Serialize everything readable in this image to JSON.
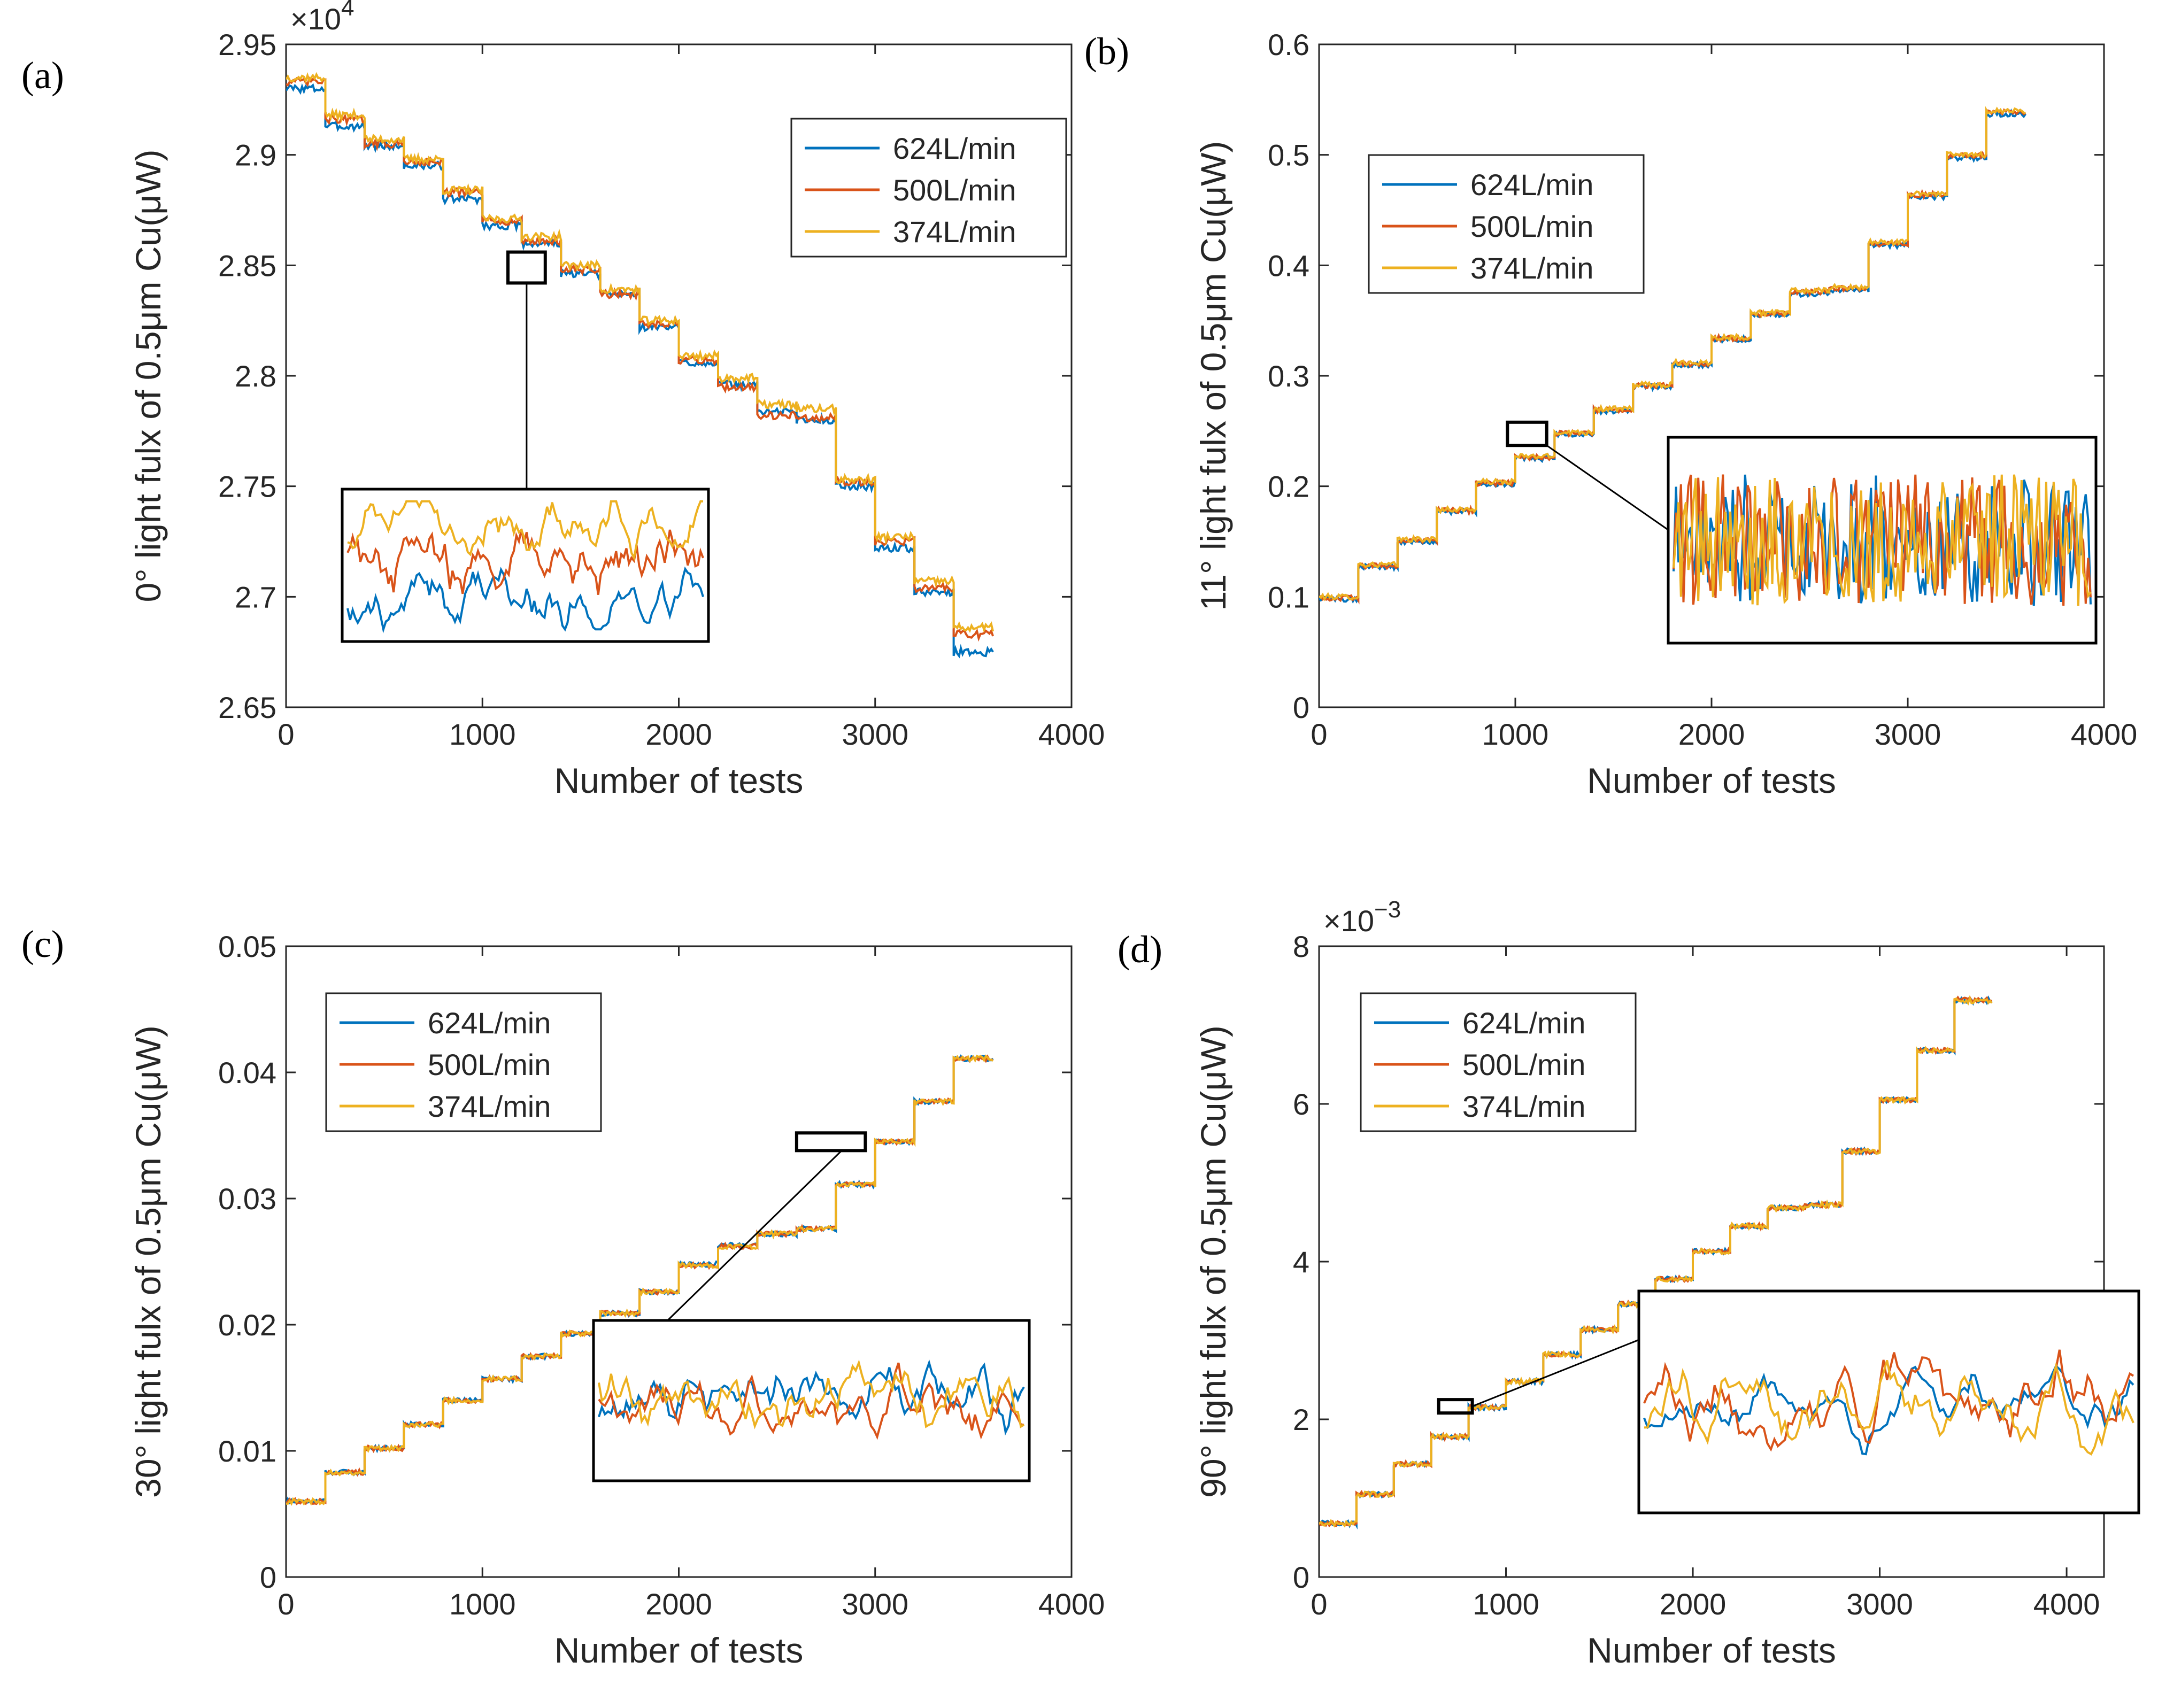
{
  "colors": {
    "blue": "#0072BD",
    "red": "#D95319",
    "yellow": "#EDB120"
  },
  "chart_data": [
    {
      "type": "line",
      "panel": "(a)",
      "xlabel": "Number of tests",
      "ylabel": "0° light fulx of 0.5μm Cu(μW)",
      "exponent": {
        "base": "×10",
        "power": "4"
      },
      "xlim": [
        0,
        4000
      ],
      "ylim": [
        2.65,
        2.95
      ],
      "xticks": [
        0,
        1000,
        2000,
        3000,
        4000
      ],
      "xtick_labels": [
        "0",
        "1000",
        "2000",
        "3000",
        "4000"
      ],
      "yticks": [
        2.65,
        2.7,
        2.75,
        2.8,
        2.85,
        2.9,
        2.95
      ],
      "ytick_labels": [
        "2.65",
        "2.7",
        "2.75",
        "2.8",
        "2.85",
        "2.9",
        "2.95"
      ],
      "legend_position": "top-right",
      "inset": {
        "x_range": [
          1130,
          1320
        ],
        "y_range": [
          2.842,
          2.856
        ],
        "noise": "smooth"
      },
      "x_end": 3600,
      "series": [
        {
          "name": "624L/min",
          "color": "#0072BD",
          "steps": [
            2.93,
            2.913,
            2.904,
            2.895,
            2.88,
            2.868,
            2.86,
            2.846,
            2.837,
            2.822,
            2.806,
            2.796,
            2.784,
            2.78,
            2.75,
            2.722,
            2.702,
            2.675
          ]
        },
        {
          "name": "500L/min",
          "color": "#D95319",
          "steps": [
            2.933,
            2.916,
            2.905,
            2.897,
            2.883,
            2.87,
            2.861,
            2.848,
            2.837,
            2.823,
            2.807,
            2.795,
            2.782,
            2.781,
            2.752,
            2.725,
            2.704,
            2.683
          ]
        },
        {
          "name": "374L/min",
          "color": "#EDB120",
          "steps": [
            2.935,
            2.918,
            2.907,
            2.898,
            2.884,
            2.871,
            2.863,
            2.85,
            2.839,
            2.825,
            2.809,
            2.799,
            2.787,
            2.785,
            2.753,
            2.727,
            2.707,
            2.686
          ]
        }
      ]
    },
    {
      "type": "line",
      "panel": "(b)",
      "xlabel": "Number of tests",
      "ylabel": "11° light fulx of 0.5μm Cu(μW)",
      "xlim": [
        0,
        4000
      ],
      "ylim": [
        0,
        0.6
      ],
      "xticks": [
        0,
        1000,
        2000,
        3000,
        4000
      ],
      "xtick_labels": [
        "0",
        "1000",
        "2000",
        "3000",
        "4000"
      ],
      "yticks": [
        0,
        0.1,
        0.2,
        0.3,
        0.4,
        0.5,
        0.6
      ],
      "ytick_labels": [
        "0",
        "0.1",
        "0.2",
        "0.3",
        "0.4",
        "0.5",
        "0.6"
      ],
      "legend_position": "top-left",
      "inset": {
        "x_range": [
          960,
          1160
        ],
        "y_range": [
          0.237,
          0.258
        ],
        "noise": "spiky"
      },
      "x_end": 3600,
      "series": [
        {
          "name": "624L/min",
          "color": "#0072BD",
          "steps": [
            0.098,
            0.127,
            0.15,
            0.177,
            0.202,
            0.225,
            0.247,
            0.268,
            0.29,
            0.31,
            0.333,
            0.355,
            0.374,
            0.378,
            0.418,
            0.462,
            0.497,
            0.537
          ]
        },
        {
          "name": "500L/min",
          "color": "#D95319",
          "steps": [
            0.099,
            0.128,
            0.151,
            0.178,
            0.203,
            0.226,
            0.248,
            0.269,
            0.291,
            0.311,
            0.334,
            0.356,
            0.376,
            0.379,
            0.419,
            0.464,
            0.499,
            0.539
          ]
        },
        {
          "name": "374L/min",
          "color": "#EDB120",
          "steps": [
            0.1,
            0.129,
            0.152,
            0.179,
            0.204,
            0.227,
            0.249,
            0.27,
            0.292,
            0.312,
            0.335,
            0.357,
            0.377,
            0.38,
            0.421,
            0.465,
            0.5,
            0.54
          ]
        }
      ]
    },
    {
      "type": "line",
      "panel": "(c)",
      "xlabel": "Number of tests",
      "ylabel": "30° light fulx of 0.5μm Cu(μW)",
      "xlim": [
        0,
        4000
      ],
      "ylim": [
        0,
        0.05
      ],
      "xticks": [
        0,
        1000,
        2000,
        3000,
        4000
      ],
      "xtick_labels": [
        "0",
        "1000",
        "2000",
        "3000",
        "4000"
      ],
      "yticks": [
        0,
        0.01,
        0.02,
        0.03,
        0.04,
        0.05
      ],
      "ytick_labels": [
        "0",
        "0.01",
        "0.02",
        "0.03",
        "0.04",
        "0.05"
      ],
      "legend_position": "top-left",
      "inset": {
        "x_range": [
          2600,
          2950
        ],
        "y_range": [
          0.0338,
          0.0352
        ],
        "noise": "smooth"
      },
      "x_end": 3600,
      "series": [
        {
          "name": "624L/min",
          "color": "#0072BD",
          "steps": [
            0.006,
            0.0083,
            0.0102,
            0.0121,
            0.014,
            0.0157,
            0.0175,
            0.0193,
            0.0209,
            0.0226,
            0.0248,
            0.0263,
            0.0272,
            0.0276,
            0.0311,
            0.0345,
            0.0377,
            0.0411
          ]
        },
        {
          "name": "500L/min",
          "color": "#D95319",
          "steps": [
            0.006,
            0.0083,
            0.0102,
            0.0121,
            0.014,
            0.0157,
            0.0175,
            0.0193,
            0.0209,
            0.0226,
            0.0247,
            0.0262,
            0.0272,
            0.0276,
            0.0311,
            0.0345,
            0.0377,
            0.0411
          ]
        },
        {
          "name": "374L/min",
          "color": "#EDB120",
          "steps": [
            0.006,
            0.0083,
            0.0102,
            0.0121,
            0.014,
            0.0157,
            0.0175,
            0.0193,
            0.0209,
            0.0226,
            0.0247,
            0.0262,
            0.0272,
            0.0276,
            0.0311,
            0.0345,
            0.0377,
            0.0411
          ]
        }
      ]
    },
    {
      "type": "line",
      "panel": "(d)",
      "xlabel": "Number of tests",
      "ylabel": "90° light fulx of 0.5μm Cu(μW)",
      "exponent": {
        "base": "×10",
        "power": "−3"
      },
      "xlim": [
        0,
        4200
      ],
      "ylim": [
        0,
        8
      ],
      "xticks": [
        0,
        1000,
        2000,
        3000,
        4000
      ],
      "xtick_labels": [
        "0",
        "1000",
        "2000",
        "3000",
        "4000"
      ],
      "yticks": [
        0,
        2,
        4,
        6,
        8
      ],
      "ytick_labels": [
        "0",
        "2",
        "4",
        "6",
        "8"
      ],
      "legend_position": "top-left",
      "inset": {
        "x_range": [
          640,
          820
        ],
        "y_range": [
          2.08,
          2.25
        ],
        "noise": "smooth"
      },
      "x_end": 3600,
      "series": [
        {
          "name": "624L/min",
          "color": "#0072BD",
          "steps": [
            0.68,
            1.05,
            1.43,
            1.78,
            2.15,
            2.48,
            2.82,
            3.14,
            3.46,
            3.78,
            4.13,
            4.45,
            4.68,
            4.72,
            5.4,
            6.05,
            6.68,
            7.31
          ]
        },
        {
          "name": "500L/min",
          "color": "#D95319",
          "steps": [
            0.68,
            1.05,
            1.43,
            1.78,
            2.15,
            2.48,
            2.82,
            3.14,
            3.46,
            3.78,
            4.13,
            4.45,
            4.68,
            4.72,
            5.4,
            6.05,
            6.68,
            7.32
          ]
        },
        {
          "name": "374L/min",
          "color": "#EDB120",
          "steps": [
            0.68,
            1.05,
            1.43,
            1.78,
            2.15,
            2.48,
            2.82,
            3.14,
            3.46,
            3.78,
            4.13,
            4.45,
            4.68,
            4.72,
            5.4,
            6.05,
            6.68,
            7.31
          ]
        }
      ]
    }
  ]
}
